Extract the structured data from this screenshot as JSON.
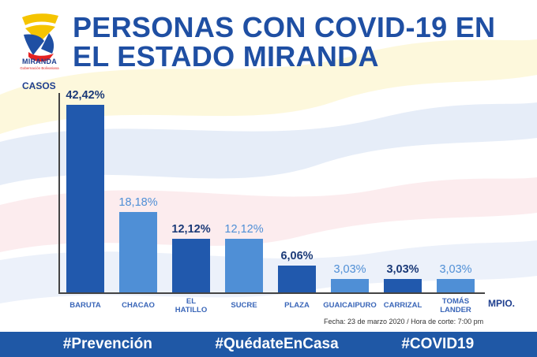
{
  "title": "PERSONAS CON COVID-19 EN EL ESTADO MIRANDA",
  "logo": {
    "name": "MIRANDA",
    "subtitle": "Gobernación Bolivariana"
  },
  "footer": {
    "hashtags": [
      "#Prevención",
      "#QuédateEnCasa",
      "#COVID19"
    ]
  },
  "note": "Fecha: 23 de marzo 2020 / Hora de corte: 7:00 pm",
  "colors": {
    "dark_bar": "#2159ad",
    "light_bar": "#4f8fd6",
    "title": "#1f4fa3",
    "footer": "#1f58a6"
  },
  "chart_data": {
    "type": "bar",
    "title": "PERSONAS CON COVID-19 EN EL ESTADO MIRANDA",
    "ylabel": "CASOS",
    "xlabel": "MPIO.",
    "ylim": [
      0,
      45
    ],
    "grid": false,
    "categories": [
      "BARUTA",
      "CHACAO",
      "EL HATILLO",
      "SUCRE",
      "PLAZA",
      "GUAICAIPURO",
      "CARRIZAL",
      "TOMÁS LANDER"
    ],
    "values": [
      42.42,
      18.18,
      12.12,
      12.12,
      6.06,
      3.03,
      3.03,
      3.03
    ],
    "value_labels": [
      "42,42%",
      "18,18%",
      "12,12%",
      "12,12%",
      "6,06%",
      "3,03%",
      "3,03%",
      "3,03%"
    ],
    "category_lines": [
      [
        "BARUTA"
      ],
      [
        "CHACAO"
      ],
      [
        "EL",
        "HATILLO"
      ],
      [
        "SUCRE"
      ],
      [
        "PLAZA"
      ],
      [
        "GUAICAIPURO"
      ],
      [
        "CARRIZAL"
      ],
      [
        "TOMÁS",
        "LANDER"
      ]
    ],
    "bar_shade": [
      "dark",
      "light",
      "dark",
      "light",
      "dark",
      "light",
      "dark",
      "light"
    ],
    "note": "Fecha: 23 de marzo 2020 / Hora de corte: 7:00 pm"
  }
}
